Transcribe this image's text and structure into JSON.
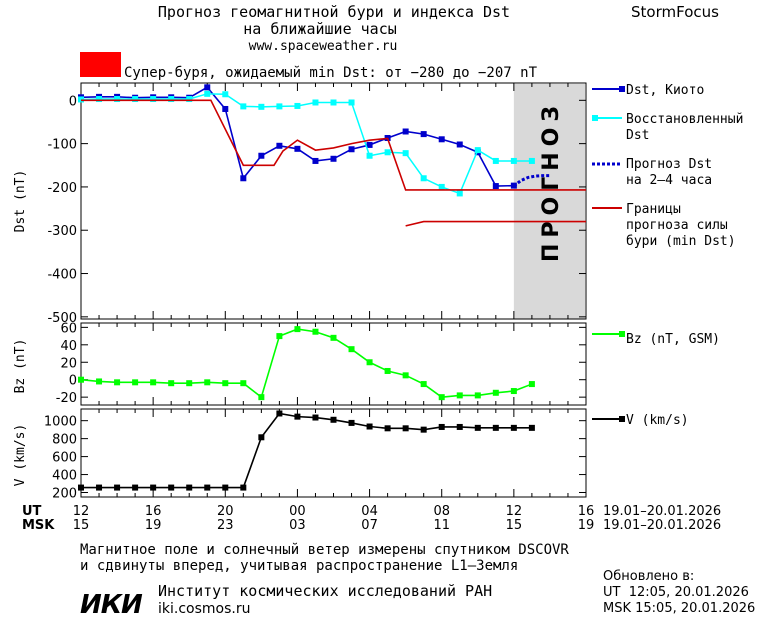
{
  "header": {
    "title_line1": "Прогноз геомагнитной бури и индекса Dst",
    "title_line2": "на ближайшие часы",
    "site": "www.spaceweather.ru",
    "brand": "StormFocus",
    "storm_label": "Супер-буря, ожидаемый min Dst: от −280 до −207 nT",
    "storm_color": "#ff0000"
  },
  "forecast_band_label": "ПРОГНОЗ",
  "legend": {
    "dst_kyoto": "Dst, Киото",
    "restored_1": "Восстановленный",
    "restored_2": "Dst",
    "forecast_1": "Прогноз Dst",
    "forecast_2": "на 2–4 часа",
    "bounds_1": "Границы",
    "bounds_2": "прогноза силы",
    "bounds_3": "бури (min Dst)",
    "bz": "Bz (nT, GSM)",
    "v": "V (km/s)"
  },
  "time_axis": {
    "ut_label": "UT",
    "msk_label": "MSK",
    "ut_ticks": [
      "12",
      "16",
      "20",
      "00",
      "04",
      "08",
      "12",
      "16"
    ],
    "msk_ticks": [
      "15",
      "19",
      "23",
      "03",
      "07",
      "11",
      "15",
      "19"
    ],
    "ut_range": "19.01–20.01.2026",
    "msk_range": "19.01–20.01.2026"
  },
  "footer": {
    "note_line1": "Магнитное поле и солнечный ветер измерены спутником DSCOVR",
    "note_line2": "и сдвинуты вперед, учитывая распространение L1–Земля",
    "logo_text": "ИКИ",
    "institute": "Институт космических исследований РАН",
    "institute_url": "iki.cosmos.ru",
    "updated_label": "Обновлено в:",
    "updated_ut": "UT  12:05, 20.01.2026",
    "updated_msk": "MSK 15:05, 20.01.2026"
  },
  "chart_data": [
    {
      "type": "line",
      "ylabel": "Dst (nT)",
      "xlim": [
        12,
        40
      ],
      "ylim": [
        -505,
        40
      ],
      "yticks": [
        0,
        -100,
        -200,
        -300,
        -400,
        -500
      ],
      "forecast_band": [
        36,
        40
      ],
      "series": [
        {
          "name": "Dst, Киото",
          "color": "#0000cc",
          "marker": "square",
          "x": [
            12,
            13,
            14,
            15,
            16,
            17,
            18,
            19,
            20,
            21,
            22,
            23,
            24,
            25,
            26,
            27,
            28,
            29,
            30,
            31,
            32,
            33,
            34,
            35,
            36
          ],
          "y": [
            7,
            8,
            8,
            6,
            7,
            7,
            6,
            30,
            -20,
            -180,
            -128,
            -105,
            -112,
            -140,
            -135,
            -113,
            -103,
            -87,
            -72,
            -78,
            -90,
            -102,
            -120,
            -198,
            -197
          ]
        },
        {
          "name": "Восстановленный Dst",
          "color": "#00ffff",
          "marker": "square",
          "x": [
            12,
            13,
            14,
            15,
            16,
            17,
            18,
            19,
            20,
            21,
            22,
            23,
            24,
            25,
            26,
            27,
            28,
            29,
            30,
            31,
            32,
            33,
            34,
            35,
            36,
            37
          ],
          "y": [
            2,
            3,
            3,
            3,
            3,
            3,
            3,
            15,
            14,
            -14,
            -15,
            -14,
            -13,
            -5,
            -5,
            -5,
            -128,
            -120,
            -122,
            -180,
            -200,
            -215,
            -115,
            -140,
            -140,
            -140
          ]
        },
        {
          "name": "Прогноз Dst на 2–4 часа",
          "color": "#0000cc",
          "dash": "3,2",
          "x": [
            36,
            36.4,
            36.8,
            37.2,
            37.6,
            38
          ],
          "y": [
            -198,
            -185,
            -178,
            -175,
            -174,
            -174
          ]
        },
        {
          "name": "Границы прогноза силы бури (min Dst)",
          "color": "#cc0000",
          "x": [
            12,
            19.2,
            21,
            22.1,
            22.7,
            23.2,
            24,
            25,
            26,
            27,
            28,
            29,
            30,
            31,
            32,
            33,
            34,
            35,
            36,
            37,
            38,
            39,
            40
          ],
          "y": [
            0,
            0,
            -150,
            -150,
            -150,
            -117,
            -92,
            -115,
            -110,
            -100,
            -92,
            -88,
            -207,
            -207,
            -207,
            -207,
            -207,
            -207,
            -207,
            -207,
            -207,
            -207,
            -207
          ]
        },
        {
          "name": "Границы прогноза силы бури (min Dst) — нижняя",
          "color": "#cc0000",
          "x": [
            30,
            31,
            32,
            33,
            34,
            35,
            36,
            37,
            38,
            39,
            40
          ],
          "y": [
            -290,
            -280,
            -280,
            -280,
            -280,
            -280,
            -280,
            -280,
            -280,
            -280,
            -280
          ]
        }
      ]
    },
    {
      "type": "line",
      "ylabel": "Bz (nT)",
      "xlim": [
        12,
        40
      ],
      "ylim": [
        -29,
        65
      ],
      "yticks": [
        60,
        40,
        20,
        0,
        -20
      ],
      "series": [
        {
          "name": "Bz (nT, GSM)",
          "color": "#00ff00",
          "marker": "square",
          "x": [
            12,
            13,
            14,
            15,
            16,
            17,
            18,
            19,
            20,
            21,
            22,
            23,
            24,
            25,
            26,
            27,
            28,
            29,
            30,
            31,
            32,
            33,
            34,
            35,
            36,
            37
          ],
          "y": [
            0,
            -2,
            -3,
            -3,
            -3,
            -4,
            -4,
            -3,
            -4,
            -4,
            -20,
            50,
            58,
            55,
            48,
            35,
            20,
            10,
            5,
            -5,
            -20,
            -18,
            -18,
            -15,
            -13,
            -5
          ]
        }
      ]
    },
    {
      "type": "line",
      "ylabel": "V (km/s)",
      "xlim": [
        12,
        40
      ],
      "ylim": [
        150,
        1130
      ],
      "yticks": [
        1000,
        800,
        600,
        400,
        200
      ],
      "series": [
        {
          "name": "V (km/s)",
          "color": "#000000",
          "marker": "square",
          "x": [
            12,
            13,
            14,
            15,
            16,
            17,
            18,
            19,
            20,
            21,
            22,
            23,
            24,
            25,
            26,
            27,
            28,
            29,
            30,
            31,
            32,
            33,
            34,
            35,
            36,
            37
          ],
          "y": [
            255,
            255,
            255,
            255,
            255,
            255,
            255,
            255,
            255,
            255,
            815,
            1080,
            1045,
            1035,
            1010,
            975,
            935,
            915,
            915,
            900,
            930,
            930,
            920,
            920,
            920,
            920
          ]
        }
      ]
    }
  ]
}
